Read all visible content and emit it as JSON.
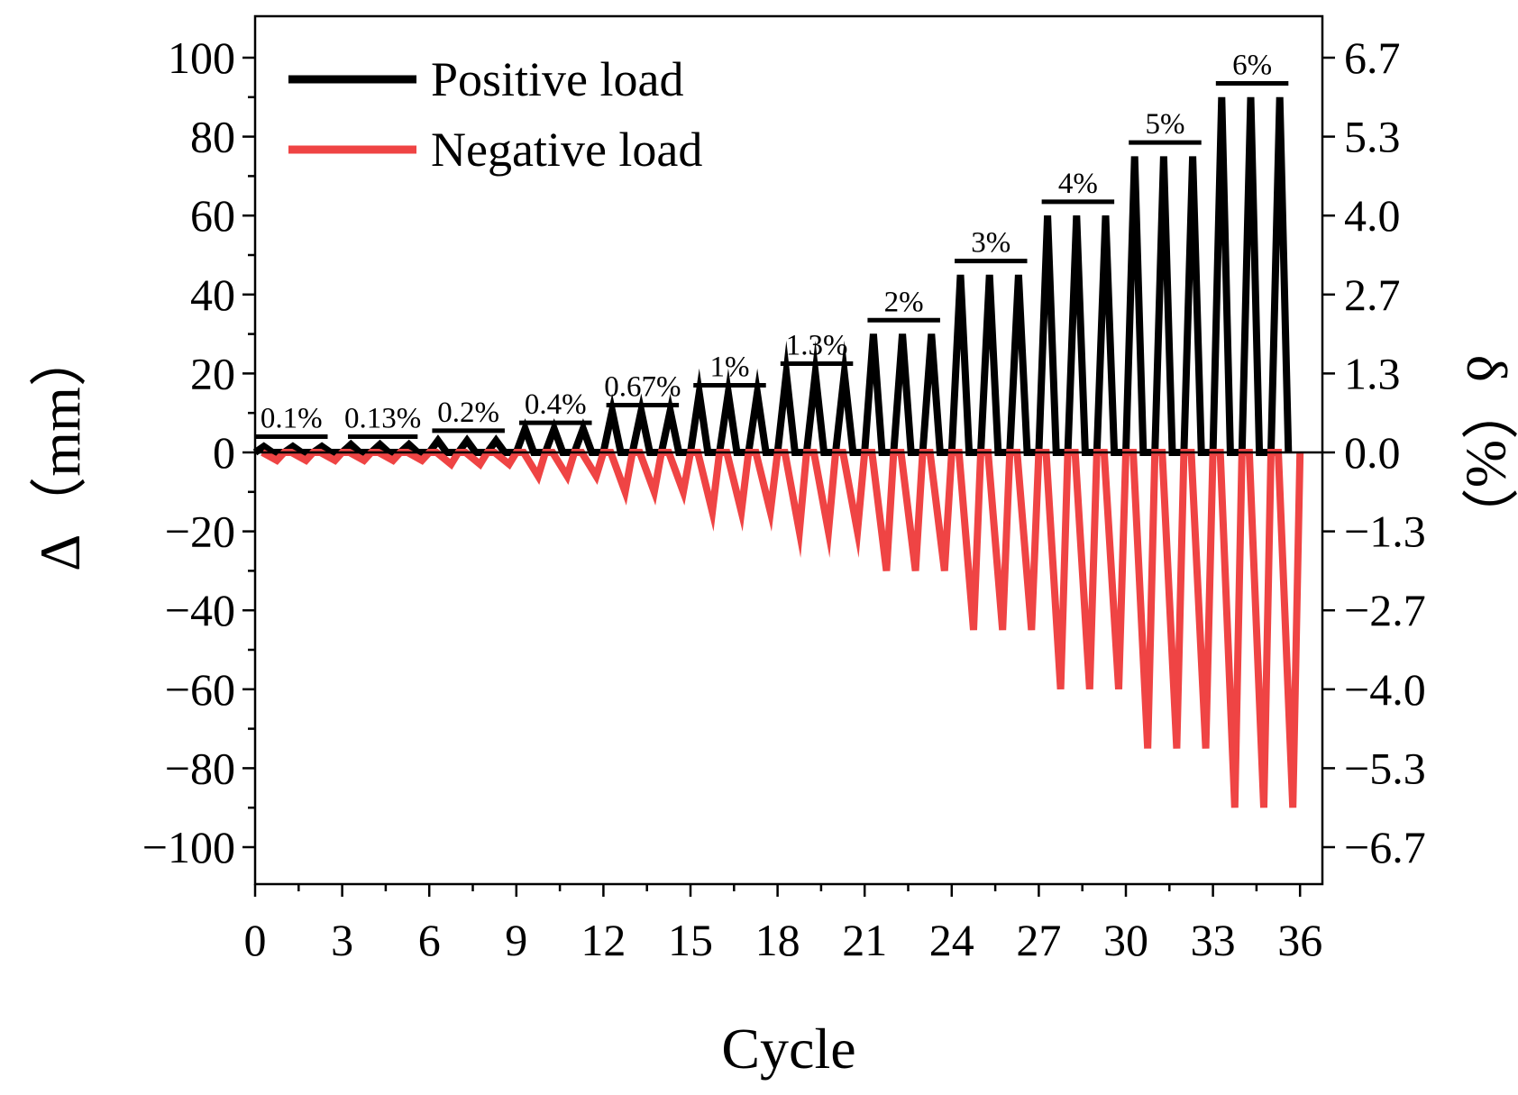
{
  "chart_data": {
    "type": "line",
    "xlabel": "Cycle",
    "ylabel": "Δ（mm）",
    "y2label": "δ（%）",
    "xlim": [
      0,
      37.5
    ],
    "ylim": [
      -108,
      110
    ],
    "xticks": [
      0,
      3,
      6,
      9,
      12,
      15,
      18,
      21,
      24,
      27,
      30,
      33,
      36
    ],
    "yticks": [
      100,
      80,
      60,
      40,
      20,
      0,
      -20,
      -40,
      -60,
      -80,
      -100
    ],
    "ytick_labels": [
      "100",
      "80",
      "60",
      "40",
      "20",
      "0",
      "−20",
      "−40",
      "−60",
      "−80",
      "−100"
    ],
    "y2ticks": [
      100,
      80,
      60,
      40,
      20,
      0,
      -20,
      -40,
      -60,
      -80,
      -100
    ],
    "y2tick_labels": [
      "6.7",
      "5.3",
      "4.0",
      "2.7",
      "1.3",
      "0.0",
      "−1.3",
      "−2.7",
      "−4.0",
      "−5.3",
      "−6.7"
    ],
    "legend_position": "top-left",
    "series": [
      {
        "name": "Positive load",
        "color": "#000000",
        "x": [
          0.3,
          1.3,
          2.3,
          3.3,
          4.3,
          5.3,
          6.3,
          7.3,
          8.3,
          9.3,
          10.3,
          11.3,
          12.3,
          13.3,
          14.3,
          15.3,
          16.3,
          17.3,
          18.3,
          19.3,
          20.3,
          21.3,
          22.3,
          23.3,
          24.3,
          25.3,
          26.3,
          27.3,
          28.3,
          29.3,
          30.3,
          31.3,
          32.3,
          33.3,
          34.3,
          35.3
        ],
        "values": [
          1.5,
          1.5,
          1.5,
          2,
          2,
          2,
          3,
          3,
          3,
          6,
          6,
          6,
          10.5,
          10.5,
          10.5,
          15,
          15,
          15,
          20,
          20,
          20,
          30,
          30,
          30,
          45,
          45,
          45,
          60,
          60,
          60,
          75,
          75,
          75,
          90,
          90,
          90
        ]
      },
      {
        "name": "Negative load",
        "color": "#ef4444",
        "x": [
          0.75,
          1.75,
          2.75,
          3.75,
          4.75,
          5.75,
          6.75,
          7.75,
          8.75,
          9.75,
          10.75,
          11.75,
          12.75,
          13.75,
          14.75,
          15.75,
          16.75,
          17.75,
          18.75,
          19.75,
          20.75,
          21.75,
          22.75,
          23.75,
          24.75,
          25.75,
          26.75,
          27.75,
          28.75,
          29.75,
          30.75,
          31.75,
          32.75,
          33.75,
          34.75,
          35.75
        ],
        "values": [
          -2,
          -2,
          -2,
          -2,
          -2,
          -2,
          -3,
          -3,
          -3,
          -6,
          -6,
          -6,
          -10,
          -10,
          -10,
          -15,
          -15,
          -15,
          -20,
          -20,
          -20,
          -30,
          -30,
          -30,
          -45,
          -45,
          -45,
          -60,
          -60,
          -60,
          -75,
          -75,
          -75,
          -90,
          -90,
          -90
        ]
      }
    ],
    "annotations": [
      {
        "text": "0.1%",
        "x_start": 0,
        "x_end": 2.5,
        "y": 4
      },
      {
        "text": "0.13%",
        "x_start": 3.2,
        "x_end": 5.6,
        "y": 4
      },
      {
        "text": "0.2%",
        "x_start": 6.1,
        "x_end": 8.6,
        "y": 5.5
      },
      {
        "text": "0.4%",
        "x_start": 9.1,
        "x_end": 11.6,
        "y": 7.5
      },
      {
        "text": "0.67%",
        "x_start": 12.1,
        "x_end": 14.6,
        "y": 12
      },
      {
        "text": "1%",
        "x_start": 15.1,
        "x_end": 17.6,
        "y": 17
      },
      {
        "text": "1.3%",
        "x_start": 18.1,
        "x_end": 20.6,
        "y": 22.5
      },
      {
        "text": "2%",
        "x_start": 21.1,
        "x_end": 23.6,
        "y": 33.5
      },
      {
        "text": "3%",
        "x_start": 24.1,
        "x_end": 26.6,
        "y": 48.5
      },
      {
        "text": "4%",
        "x_start": 27.1,
        "x_end": 29.6,
        "y": 63.5
      },
      {
        "text": "5%",
        "x_start": 30.1,
        "x_end": 32.6,
        "y": 78.5
      },
      {
        "text": "6%",
        "x_start": 33.1,
        "x_end": 35.6,
        "y": 93.5
      }
    ]
  }
}
